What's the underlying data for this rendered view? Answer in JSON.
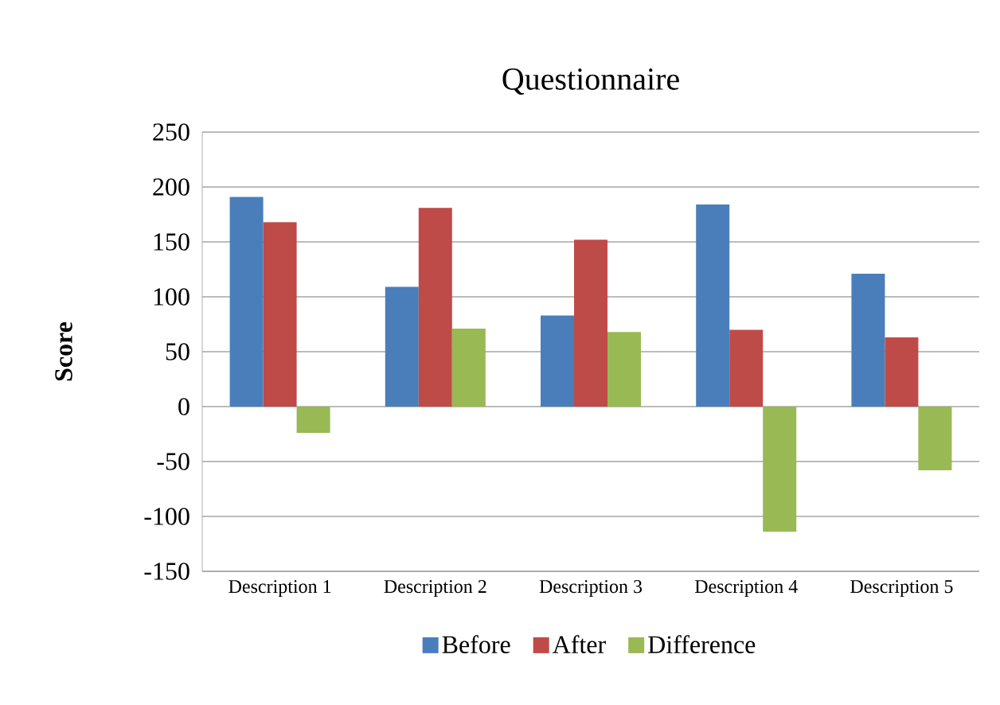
{
  "chart_data": {
    "type": "bar",
    "title": "Questionnaire",
    "ylabel": "Score",
    "categories": [
      "Description 1",
      "Description 2",
      "Description 3",
      "Description 4",
      "Description 5"
    ],
    "series": [
      {
        "name": "Before",
        "color": "#4a7ebb",
        "values": [
          191,
          109,
          83,
          184,
          121
        ]
      },
      {
        "name": "After",
        "color": "#be4b48",
        "values": [
          168,
          181,
          152,
          70,
          63
        ]
      },
      {
        "name": "Difference",
        "color": "#98b954",
        "values": [
          -24,
          71,
          68,
          -114,
          -58
        ]
      }
    ],
    "ylim": [
      -150,
      250
    ],
    "yticks": [
      -150,
      -100,
      -50,
      0,
      50,
      100,
      150,
      200,
      250
    ],
    "grid": "y",
    "legend": "bottom"
  }
}
